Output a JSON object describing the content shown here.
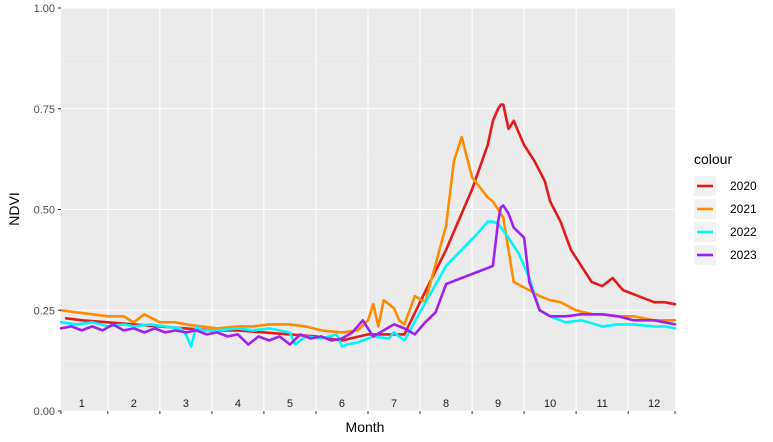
{
  "chart_data": {
    "type": "line",
    "xlabel": "Month",
    "ylabel": "NDVI",
    "ylim": [
      0,
      1
    ],
    "yticks": [
      "0.00",
      "0.25",
      "0.50",
      "0.75",
      "1.00"
    ],
    "yticks_values": [
      0,
      0.25,
      0.5,
      0.75,
      1.0
    ],
    "month_labels": [
      "1",
      "2",
      "3",
      "4",
      "5",
      "6",
      "7",
      "8",
      "9",
      "10",
      "11",
      "12"
    ],
    "x_unit": "month",
    "xlim": [
      0.6,
      12.4
    ],
    "grid": true,
    "legend": {
      "title": "colour",
      "position": "right"
    },
    "series": [
      {
        "name": "2020",
        "color": "#e41a1c",
        "x": [
          0.7,
          1.0,
          1.5,
          2.0,
          2.5,
          3.0,
          3.5,
          4.0,
          4.5,
          5.0,
          5.5,
          6.0,
          6.5,
          7.0,
          7.2,
          7.5,
          8.0,
          8.5,
          8.8,
          8.9,
          9.0,
          9.05,
          9.1,
          9.2,
          9.3,
          9.5,
          9.7,
          9.9,
          10.0,
          10.2,
          10.4,
          10.6,
          10.8,
          11.0,
          11.2,
          11.4,
          11.6,
          11.8,
          12.0,
          12.2,
          12.4
        ],
        "y": [
          0.23,
          0.225,
          0.22,
          0.215,
          0.21,
          0.205,
          0.2,
          0.2,
          0.195,
          0.19,
          0.185,
          0.175,
          0.19,
          0.19,
          0.19,
          0.27,
          0.4,
          0.55,
          0.66,
          0.72,
          0.75,
          0.76,
          0.76,
          0.7,
          0.72,
          0.66,
          0.62,
          0.57,
          0.52,
          0.47,
          0.4,
          0.36,
          0.32,
          0.31,
          0.33,
          0.3,
          0.29,
          0.28,
          0.27,
          0.27,
          0.265
        ]
      },
      {
        "name": "2021",
        "color": "#ff8c00",
        "x": [
          0.6,
          0.9,
          1.2,
          1.5,
          1.8,
          2.0,
          2.2,
          2.5,
          2.8,
          3.0,
          3.3,
          3.6,
          4.0,
          4.3,
          4.6,
          5.0,
          5.3,
          5.6,
          6.0,
          6.3,
          6.5,
          6.6,
          6.7,
          6.8,
          7.0,
          7.1,
          7.2,
          7.4,
          7.6,
          8.0,
          8.15,
          8.3,
          8.5,
          8.8,
          8.9,
          9.1,
          9.3,
          9.6,
          9.8,
          10.0,
          10.2,
          10.5,
          10.8,
          11.0,
          11.3,
          11.6,
          12.0,
          12.2,
          12.4
        ],
        "y": [
          0.25,
          0.245,
          0.24,
          0.235,
          0.235,
          0.22,
          0.24,
          0.22,
          0.22,
          0.215,
          0.21,
          0.205,
          0.21,
          0.21,
          0.215,
          0.215,
          0.21,
          0.2,
          0.195,
          0.2,
          0.225,
          0.265,
          0.21,
          0.275,
          0.255,
          0.225,
          0.215,
          0.285,
          0.27,
          0.46,
          0.62,
          0.68,
          0.58,
          0.53,
          0.52,
          0.48,
          0.32,
          0.3,
          0.285,
          0.275,
          0.27,
          0.25,
          0.24,
          0.24,
          0.235,
          0.235,
          0.225,
          0.225,
          0.225
        ]
      },
      {
        "name": "2022",
        "color": "#00f5ff",
        "x": [
          0.6,
          0.9,
          1.2,
          1.5,
          1.8,
          2.0,
          2.3,
          2.6,
          2.9,
          3.0,
          3.1,
          3.2,
          3.3,
          3.6,
          4.0,
          4.3,
          4.6,
          5.0,
          5.1,
          5.3,
          5.6,
          5.9,
          6.0,
          6.1,
          6.3,
          6.6,
          6.9,
          7.0,
          7.2,
          7.5,
          8.0,
          8.3,
          8.6,
          8.8,
          8.9,
          9.0,
          9.2,
          9.4,
          9.6,
          9.8,
          10.0,
          10.3,
          10.6,
          11.0,
          11.3,
          11.6,
          12.0,
          12.2,
          12.4
        ],
        "y": [
          0.22,
          0.215,
          0.22,
          0.21,
          0.215,
          0.21,
          0.215,
          0.21,
          0.205,
          0.19,
          0.16,
          0.21,
          0.2,
          0.2,
          0.205,
          0.2,
          0.205,
          0.195,
          0.165,
          0.185,
          0.18,
          0.19,
          0.16,
          0.165,
          0.17,
          0.185,
          0.18,
          0.195,
          0.175,
          0.245,
          0.36,
          0.4,
          0.44,
          0.47,
          0.47,
          0.465,
          0.43,
          0.39,
          0.33,
          0.25,
          0.235,
          0.22,
          0.225,
          0.21,
          0.215,
          0.215,
          0.21,
          0.21,
          0.205
        ]
      },
      {
        "name": "2023",
        "color": "#a020f0",
        "x": [
          0.6,
          0.8,
          1.0,
          1.2,
          1.4,
          1.6,
          1.8,
          2.0,
          2.2,
          2.4,
          2.6,
          2.8,
          3.0,
          3.2,
          3.4,
          3.6,
          3.8,
          4.0,
          4.2,
          4.4,
          4.6,
          4.8,
          5.0,
          5.2,
          5.4,
          5.6,
          5.8,
          6.0,
          6.2,
          6.4,
          6.6,
          6.8,
          7.0,
          7.2,
          7.4,
          7.6,
          7.8,
          8.0,
          8.3,
          8.6,
          8.9,
          9.0,
          9.05,
          9.1,
          9.2,
          9.3,
          9.5,
          9.6,
          9.8,
          10.0,
          10.3,
          10.6,
          11.0,
          11.3,
          11.6,
          12.0,
          12.2,
          12.4
        ],
        "y": [
          0.205,
          0.21,
          0.2,
          0.21,
          0.2,
          0.215,
          0.2,
          0.205,
          0.195,
          0.205,
          0.195,
          0.2,
          0.195,
          0.2,
          0.19,
          0.195,
          0.185,
          0.19,
          0.165,
          0.185,
          0.175,
          0.185,
          0.165,
          0.19,
          0.18,
          0.185,
          0.175,
          0.18,
          0.195,
          0.225,
          0.185,
          0.2,
          0.215,
          0.205,
          0.19,
          0.22,
          0.245,
          0.315,
          0.33,
          0.345,
          0.36,
          0.47,
          0.505,
          0.51,
          0.49,
          0.455,
          0.43,
          0.32,
          0.25,
          0.235,
          0.235,
          0.24,
          0.24,
          0.235,
          0.225,
          0.225,
          0.22,
          0.215
        ]
      }
    ]
  }
}
